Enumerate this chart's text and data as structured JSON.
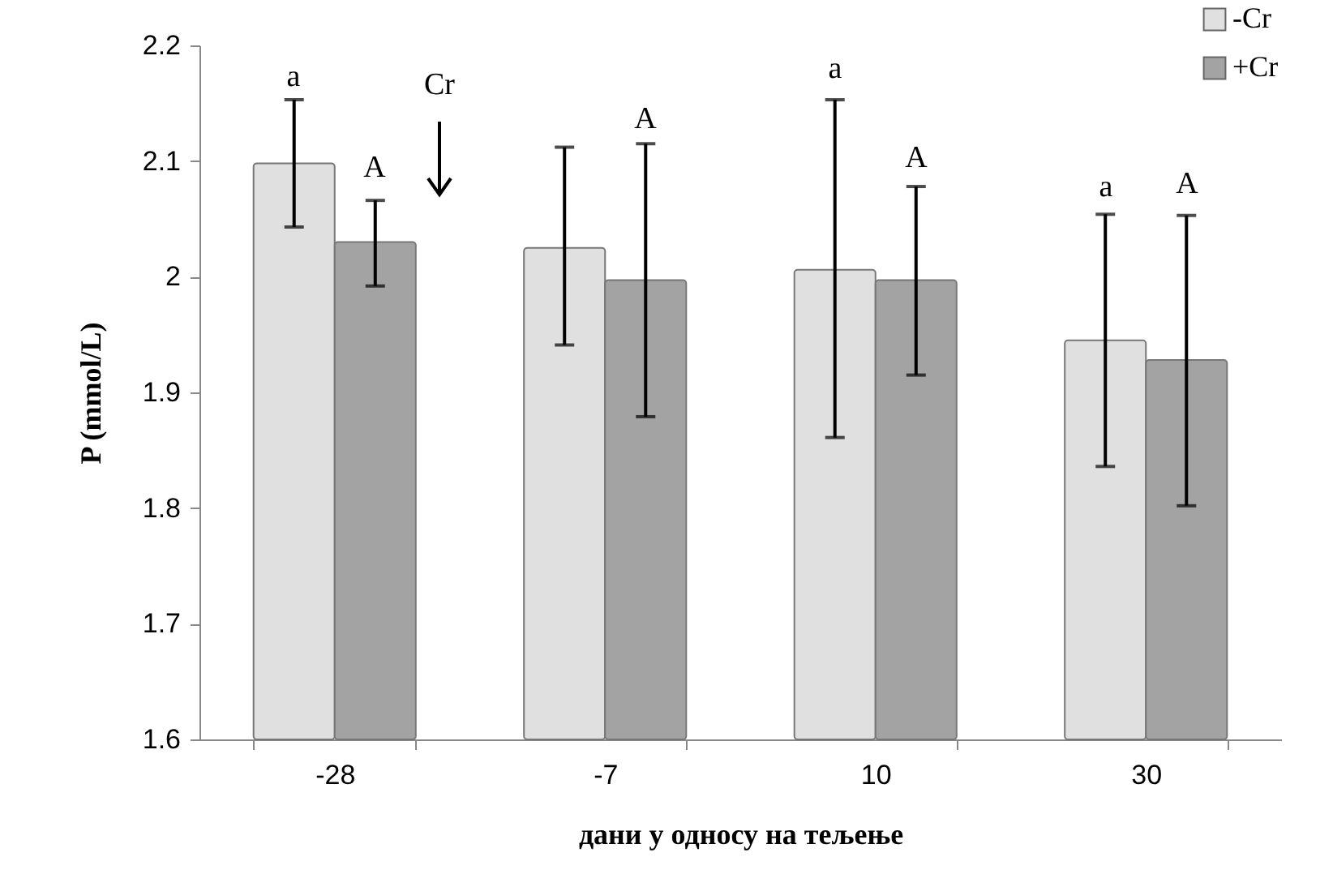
{
  "chart_data": {
    "type": "bar",
    "xlabel": "дани у односу на тељење",
    "ylabel": "P (mmol/L)",
    "categories": [
      "-28",
      "-7",
      "10",
      "30"
    ],
    "series": [
      {
        "name": "-Cr",
        "color": "#e0e0e0",
        "values": [
          2.098,
          2.025,
          2.006,
          1.945
        ],
        "errors": [
          [
            2.043,
            2.153
          ],
          [
            1.941,
            2.112
          ],
          [
            1.861,
            2.153
          ],
          [
            1.836,
            2.054
          ]
        ]
      },
      {
        "name": "+Cr",
        "color": "#a3a3a3",
        "values": [
          2.03,
          1.997,
          1.997,
          1.928
        ],
        "errors": [
          [
            1.992,
            2.066
          ],
          [
            1.879,
            2.115
          ],
          [
            1.915,
            2.078
          ],
          [
            1.802,
            2.053
          ]
        ]
      }
    ],
    "ylim": [
      1.6,
      2.2
    ],
    "yticks": [
      1.6,
      1.7,
      1.8,
      1.9,
      2,
      2.1,
      2.2
    ],
    "grid": false,
    "legend": "top right",
    "annotations": [
      "a",
      "A",
      "Cr",
      "A",
      "a",
      "A",
      "a",
      "A"
    ]
  }
}
